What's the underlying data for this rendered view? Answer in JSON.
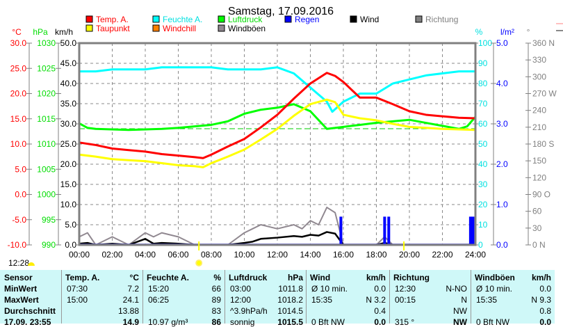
{
  "title": "Samstag, 17.09.2016",
  "legend": [
    {
      "label": "Temp. A.",
      "color": "#ff0000",
      "text_color": "#ff0000"
    },
    {
      "label": "Feuchte A.",
      "color": "#00ffff",
      "text_color": "#00e0e0"
    },
    {
      "label": "Luftdruck",
      "color": "#00ff00",
      "text_color": "#00dd00"
    },
    {
      "label": "Regen",
      "color": "#0000ff",
      "text_color": "#0000ff"
    },
    {
      "label": "Wind",
      "color": "#000000",
      "text_color": "#000000"
    },
    {
      "label": "Richtung",
      "color": "#808080",
      "text_color": "#808080"
    },
    {
      "label": "Taupunkt",
      "color": "#ffff00",
      "text_color": "#ff0000"
    },
    {
      "label": "Windchill",
      "color": "#ff8000",
      "text_color": "#ff0000"
    },
    {
      "label": "Windböen",
      "color": "#908890",
      "text_color": "#000000"
    }
  ],
  "axes": {
    "temp": {
      "unit": "°C",
      "ticks": [
        "30.0",
        "25.0",
        "20.0",
        "15.0",
        "10.0",
        "5.0",
        "0.0",
        "-5.0",
        "-10.0"
      ],
      "range": [
        -10,
        30
      ],
      "color": "#ff0000"
    },
    "pressure": {
      "unit": "hPa",
      "ticks": [
        "1030",
        "1025",
        "1020",
        "1015",
        "1010",
        "1005",
        "1000",
        "995",
        "990"
      ],
      "range": [
        990,
        1030
      ],
      "color": "#00dd00"
    },
    "wind": {
      "unit": "km/h",
      "ticks": [
        "50.0",
        "45.0",
        "40.0",
        "35.0",
        "30.0",
        "25.0",
        "20.0",
        "15.0",
        "10.0",
        "5.0",
        "0.0"
      ],
      "range": [
        0,
        50
      ],
      "color": "#000000"
    },
    "humidity": {
      "unit": "%",
      "ticks": [
        "100",
        "90",
        "80",
        "70",
        "60",
        "50",
        "40",
        "30",
        "20",
        "10",
        "0"
      ],
      "range": [
        0,
        100
      ],
      "color": "#00e0e0"
    },
    "rain": {
      "unit": "l/m²",
      "ticks": [
        "5.0",
        "4.0",
        "3.0",
        "2.0",
        "1.0",
        "0.0"
      ],
      "range": [
        0,
        5
      ],
      "color": "#0000ff"
    },
    "direction": {
      "unit": "°",
      "ticks": [
        "360 N",
        "330",
        "300",
        "270 W",
        "240",
        "210",
        "180 S",
        "150",
        "120",
        "90  O",
        "60",
        "30",
        "0    N"
      ],
      "range": [
        0,
        360
      ],
      "color": "#808080"
    },
    "time": {
      "ticks": [
        "00:00",
        "02:00",
        "04:00",
        "06:00",
        "08:00",
        "10:00",
        "12:00",
        "14:00",
        "16:00",
        "18:00",
        "20:00",
        "22:00",
        "24:00"
      ]
    }
  },
  "sunrise": "07:15",
  "sunset": "19:40",
  "moon_time": "12:28",
  "chart_data": {
    "type": "line",
    "grid": true,
    "x_unit": "hours",
    "xlim": [
      0,
      24
    ],
    "series": [
      {
        "name": "Temp. A.",
        "axis": "temp",
        "color": "#ff0000",
        "x": [
          0,
          1,
          2,
          3,
          4,
          5,
          6,
          7,
          7.5,
          8,
          9,
          10,
          11,
          12,
          13,
          14,
          15,
          15.5,
          16,
          17,
          18,
          19,
          20,
          21,
          22,
          23,
          24
        ],
        "y": [
          10.3,
          9.8,
          9.1,
          8.8,
          8.5,
          8.0,
          7.7,
          7.4,
          7.2,
          7.9,
          9.5,
          11.0,
          13.3,
          15.8,
          19.0,
          22.0,
          24.1,
          23.5,
          22.3,
          19.2,
          19.2,
          17.9,
          16.5,
          15.8,
          15.5,
          15.2,
          15.1
        ]
      },
      {
        "name": "Taupunkt",
        "axis": "temp",
        "color": "#ffff00",
        "x": [
          0,
          1,
          2,
          3,
          4,
          5,
          6,
          7,
          7.5,
          8,
          9,
          10,
          11,
          12,
          13,
          14,
          15,
          15.5,
          16,
          17,
          18,
          19,
          20,
          21,
          22,
          23,
          24
        ],
        "y": [
          7.9,
          7.5,
          7.0,
          6.8,
          6.6,
          6.2,
          5.8,
          5.6,
          5.4,
          6.2,
          7.5,
          8.9,
          10.9,
          13.0,
          15.6,
          17.9,
          18.8,
          18.3,
          15.8,
          15.1,
          14.7,
          14.0,
          13.4,
          13.2,
          13.0,
          12.9,
          12.8
        ]
      },
      {
        "name": "Feuchte A.",
        "axis": "humidity",
        "color": "#00ffff",
        "x": [
          0,
          1,
          2,
          3,
          4,
          5,
          6,
          7,
          8,
          9,
          10,
          11,
          12,
          13,
          14,
          15,
          15.33,
          16,
          17,
          18,
          19,
          20,
          21,
          22,
          23,
          24
        ],
        "y": [
          86,
          86,
          87,
          87,
          87,
          88,
          88,
          88,
          88,
          87,
          87,
          87,
          88,
          85,
          78,
          71,
          66,
          71,
          75,
          75,
          80,
          82,
          84,
          85,
          86,
          86
        ]
      },
      {
        "name": "Luftdruck",
        "axis": "pressure",
        "color": "#00ff00",
        "x": [
          0,
          0.5,
          1,
          2,
          3,
          4,
          5,
          6,
          7,
          8,
          9,
          10,
          11,
          12,
          13,
          14,
          15,
          16,
          17,
          18,
          19,
          20,
          21,
          22,
          23,
          23.5,
          24
        ],
        "y": [
          1014.1,
          1013.2,
          1013.0,
          1012.9,
          1012.8,
          1012.9,
          1013.0,
          1013.2,
          1013.5,
          1013.8,
          1014.5,
          1016.0,
          1016.8,
          1017.2,
          1017.9,
          1016.5,
          1013.0,
          1013.4,
          1013.8,
          1014.2,
          1014.5,
          1014.8,
          1014.2,
          1013.6,
          1013.0,
          1013.5,
          1015.4
        ]
      },
      {
        "name": "Windböen",
        "axis": "wind",
        "color": "#908890",
        "x": [
          0,
          0.5,
          1,
          2,
          3,
          4,
          4.5,
          5,
          6,
          7,
          8,
          9,
          10,
          10.5,
          11,
          12,
          13,
          13.5,
          14,
          14.5,
          15,
          15.5,
          16,
          17,
          18,
          18.5,
          19,
          20,
          21,
          22,
          23,
          24
        ],
        "y": [
          2,
          3,
          0,
          2,
          0,
          3,
          2,
          3,
          2,
          0,
          0,
          0,
          3,
          4,
          5,
          4,
          5,
          4,
          6,
          5,
          9.3,
          8,
          0,
          0,
          0,
          2,
          0,
          0,
          0,
          0,
          0,
          0
        ]
      },
      {
        "name": "Wind",
        "axis": "wind",
        "color": "#000000",
        "x": [
          0,
          0.5,
          1,
          2,
          3,
          4,
          4.5,
          5,
          6,
          7,
          8,
          9,
          10,
          10.5,
          11,
          12,
          13,
          13.5,
          14,
          14.5,
          15,
          15.5,
          16,
          17,
          18,
          18.5,
          19,
          20,
          21,
          22,
          23,
          24
        ],
        "y": [
          0.3,
          0.5,
          0,
          0.3,
          0,
          1.5,
          0.3,
          0.5,
          0.3,
          0,
          0,
          0,
          0.5,
          0.8,
          1.5,
          1.8,
          2.2,
          2.0,
          2.5,
          2.3,
          3.2,
          2.8,
          0,
          0,
          0,
          0.5,
          0,
          0,
          0,
          0,
          0,
          0
        ]
      },
      {
        "name": "Regen",
        "axis": "rain",
        "color": "#0000ff",
        "type": "bar",
        "x": [
          15.85,
          18.5,
          18.75,
          23.7,
          23.85
        ],
        "y": [
          0.7,
          0.7,
          0.7,
          0.7,
          0.7
        ]
      }
    ]
  },
  "table": {
    "headers": [
      {
        "label": "Sensor"
      },
      {
        "label": "Temp. A.",
        "unit": "°C"
      },
      {
        "label": "Feuchte A.",
        "unit": "%"
      },
      {
        "label": "Luftdruck",
        "unit": "hPa"
      },
      {
        "label": "Wind",
        "unit": "km/h"
      },
      {
        "label": "Richtung",
        "unit": ""
      },
      {
        "label": "Windböen",
        "unit": "km/h"
      }
    ],
    "rows": [
      {
        "label": "MinWert",
        "cells": [
          [
            "07:30",
            "7.2"
          ],
          [
            "15:20",
            "66"
          ],
          [
            "03:00",
            "1011.8"
          ],
          [
            "Ø 10 min.",
            "0.0"
          ],
          [
            "12:30",
            "N-NO"
          ],
          [
            "Ø 10 min.",
            "0.0"
          ]
        ]
      },
      {
        "label": "MaxWert",
        "cells": [
          [
            "15:00",
            "24.1"
          ],
          [
            "06:25",
            "89"
          ],
          [
            "12:00",
            "1018.2"
          ],
          [
            "15:35",
            "N 3.2"
          ],
          [
            "00:15",
            "N"
          ],
          [
            "15:35",
            "N 9.3"
          ]
        ]
      },
      {
        "label": "Durchschnitt",
        "cells": [
          [
            "",
            "13.88"
          ],
          [
            "",
            "83"
          ],
          [
            "^3.9hPa/h",
            "1014.5"
          ],
          [
            "",
            "0.4"
          ],
          [
            "",
            "NW"
          ],
          [
            "",
            "0.8"
          ]
        ]
      },
      {
        "label": "17.09. 23:55",
        "cells": [
          [
            "",
            "14.9"
          ],
          [
            "10.97 g/m³",
            "86"
          ],
          [
            "sonnig",
            "1015.5"
          ],
          [
            "0 Bft NW",
            "0.0"
          ],
          [
            "315 °",
            "NW"
          ],
          [
            "0 Bft NW",
            "0.0"
          ]
        ]
      }
    ]
  }
}
